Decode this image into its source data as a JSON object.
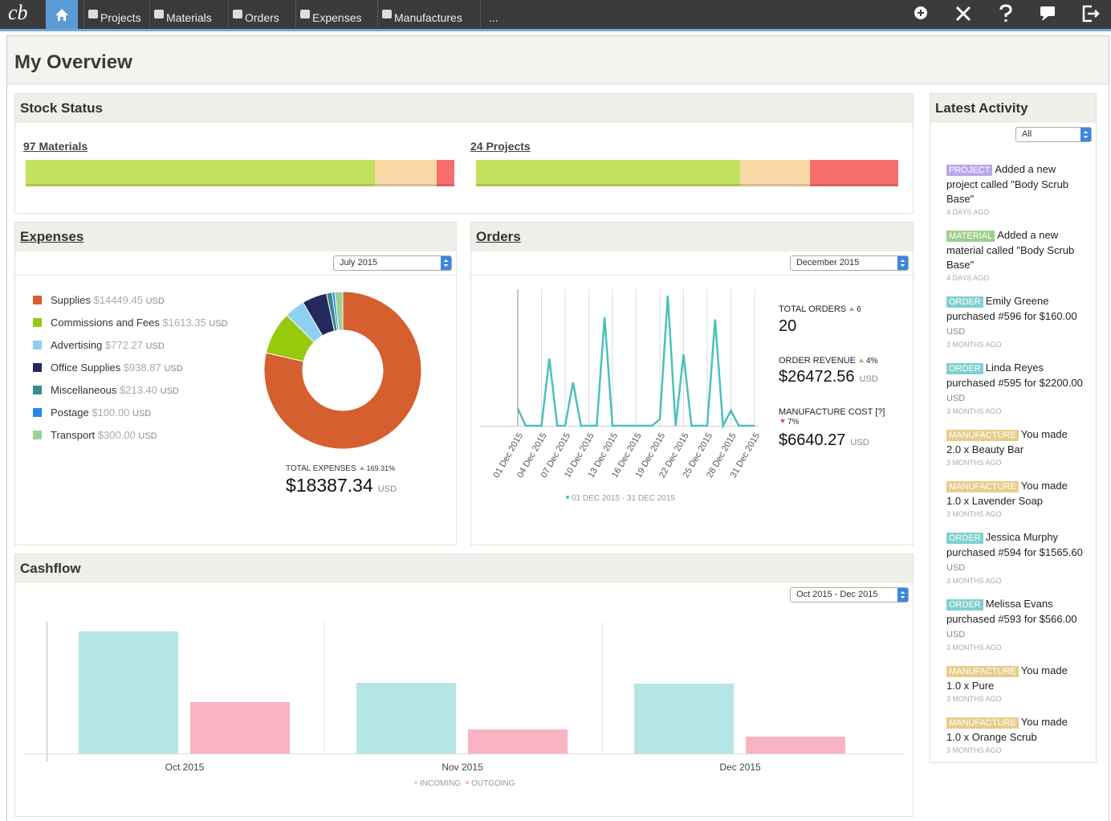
{
  "nav": {
    "logo": "cb",
    "items": [
      "Projects",
      "Materials",
      "Orders",
      "Expenses",
      "Manufactures",
      "..."
    ]
  },
  "page_title": "My Overview",
  "stock": {
    "title": "Stock Status",
    "colors": [
      "#c4e05f",
      "#f8d9a6",
      "#f76e6e"
    ],
    "groups": [
      {
        "label": "97 Materials",
        "values": [
          79,
          14,
          4
        ]
      },
      {
        "label": "24 Projects",
        "values": [
          15,
          4,
          5
        ]
      }
    ]
  },
  "chart_data": [
    {
      "type": "pie",
      "title": "Expenses",
      "period": "July 2015",
      "categories": [
        "Supplies",
        "Commissions and Fees",
        "Advertising",
        "Office Supplies",
        "Miscellaneous",
        "Postage",
        "Transport"
      ],
      "values": [
        14449.45,
        1613.35,
        772.27,
        938.87,
        213.4,
        100.0,
        300.0
      ],
      "value_labels": [
        "$14449.45",
        "$1613.35",
        "$772.27",
        "$938.87",
        "$213.40",
        "$100.00",
        "$300.00"
      ],
      "colors": [
        "#d55f2f",
        "#97c90c",
        "#8dd0f2",
        "#23295c",
        "#3a8b8c",
        "#2b85e4",
        "#9bd09a"
      ],
      "unit": "USD",
      "total_label": "TOTAL EXPENSES",
      "total_change": "169.31%",
      "total": "$18387.34"
    },
    {
      "type": "line",
      "title": "Orders",
      "period": "December 2015",
      "categories": [
        "01 Dec 2015",
        null,
        null,
        "04 Dec 2015",
        null,
        null,
        "07 Dec 2015",
        null,
        null,
        "10 Dec 2015",
        null,
        null,
        "13 Dec 2015",
        null,
        null,
        "16 Dec 2015",
        null,
        null,
        "19 Dec 2015",
        null,
        null,
        "22 Dec 2015",
        null,
        null,
        "25 Dec 2015",
        null,
        null,
        "28 Dec 2015",
        null,
        null,
        "31 Dec 2015"
      ],
      "series": [
        {
          "name": "01 DEC 2015 - 31 DEC 2015",
          "color": "#4cc0bc",
          "values": [
            0.8,
            0,
            0,
            0,
            3.1,
            0,
            0,
            2,
            0,
            0,
            0,
            5,
            0,
            0,
            0,
            0,
            0,
            0,
            0.3,
            6,
            0,
            3.3,
            0,
            0,
            0,
            4.9,
            0,
            0.7,
            0,
            0,
            0
          ]
        }
      ],
      "ylim": [
        0,
        6.3
      ],
      "grid": true,
      "stats": [
        {
          "label": "TOTAL ORDERS",
          "change": "6",
          "direction": "up",
          "value": "20"
        },
        {
          "label": "ORDER REVENUE",
          "change": "4%",
          "direction": "up",
          "value": "$26472.56",
          "unit": "USD"
        },
        {
          "label": "MANUFACTURE COST [?]",
          "change": "7%",
          "direction": "down",
          "value": "$6640.27",
          "unit": "USD"
        }
      ]
    },
    {
      "type": "bar",
      "title": "Cashflow",
      "period": "Oct 2015 - Dec 2015",
      "categories": [
        "Oct 2015",
        "Nov 2015",
        "Dec 2015"
      ],
      "series": [
        {
          "name": "INCOMING",
          "color": "#b5e5e5",
          "values": [
            152,
            88,
            87
          ]
        },
        {
          "name": "OUTGOING",
          "color": "#fab3c2",
          "values": [
            64,
            30,
            21
          ]
        }
      ],
      "ylim": [
        0,
        160
      ]
    }
  ],
  "activity": {
    "title": "Latest Activity",
    "filter": "All",
    "items": [
      {
        "tag": "PROJECT",
        "color": "#b8a8ea",
        "text": "Added a new project called \"Body Scrub Base\"",
        "time": "4 DAYS AGO"
      },
      {
        "tag": "MATERIAL",
        "color": "#9dcf8c",
        "text": "Added a new material called \"Body Scrub Base\"",
        "time": "4 DAYS AGO"
      },
      {
        "tag": "ORDER",
        "color": "#80cfcf",
        "text": "Emily Greene purchased #596 for $160.00",
        "unit": "USD",
        "time": "3 MONTHS AGO"
      },
      {
        "tag": "ORDER",
        "color": "#80cfcf",
        "text": "Linda Reyes purchased #595 for $2200.00",
        "unit": "USD",
        "time": "3 MONTHS AGO"
      },
      {
        "tag": "MANUFACTURE",
        "color": "#e8cd8a",
        "text": "You made 2.0 x Beauty Bar",
        "time": "3 MONTHS AGO"
      },
      {
        "tag": "MANUFACTURE",
        "color": "#e8cd8a",
        "text": "You made 1.0 x Lavender Soap",
        "time": "3 MONTHS AGO"
      },
      {
        "tag": "ORDER",
        "color": "#80cfcf",
        "text": "Jessica Murphy purchased #594 for $1565.60",
        "unit": "USD",
        "time": "3 MONTHS AGO"
      },
      {
        "tag": "ORDER",
        "color": "#80cfcf",
        "text": "Melissa Evans purchased #593 for $566.00",
        "unit": "USD",
        "time": "3 MONTHS AGO"
      },
      {
        "tag": "MANUFACTURE",
        "color": "#e8cd8a",
        "text": "You made 1.0 x Pure",
        "time": "3 MONTHS AGO"
      },
      {
        "tag": "MANUFACTURE",
        "color": "#e8cd8a",
        "text": "You made 1.0 x Orange Scrub",
        "time": "3 MONTHS AGO"
      }
    ]
  }
}
